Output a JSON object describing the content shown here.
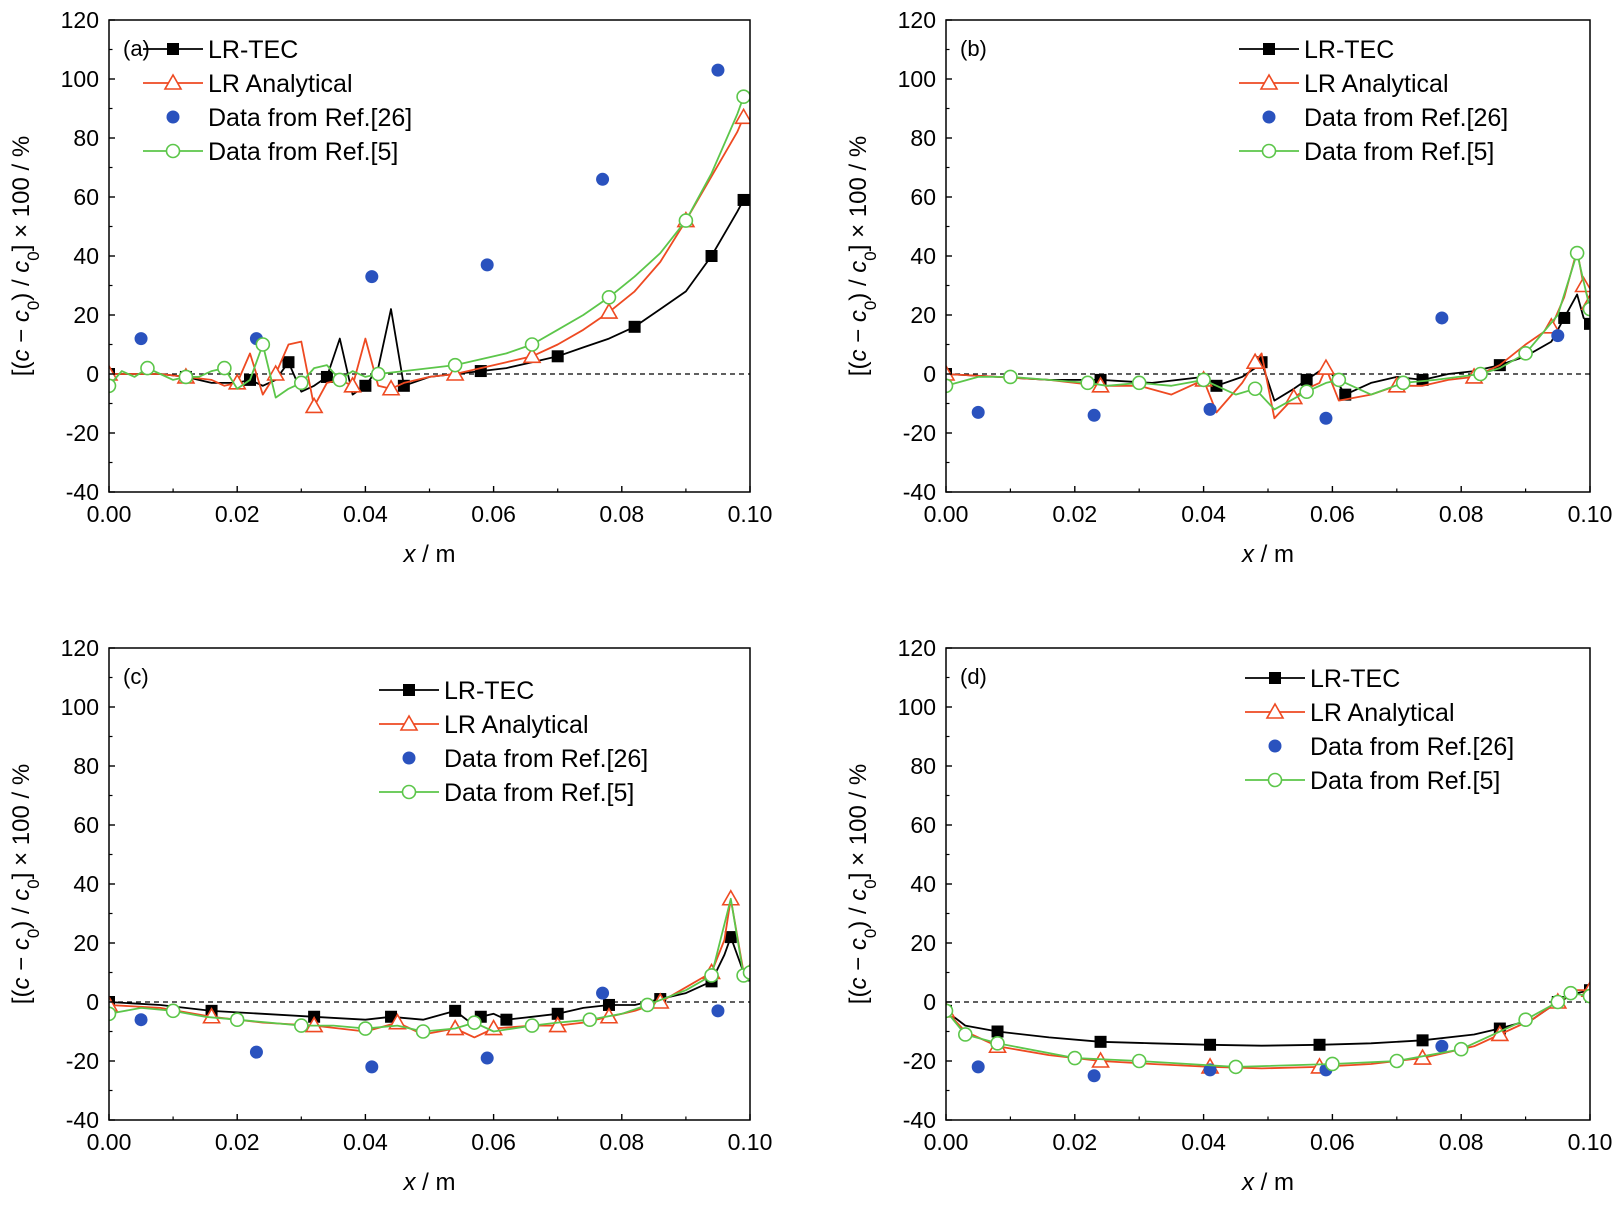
{
  "colors": {
    "lr_tec": "#000000",
    "lr_analytical": "#ee4a22",
    "ref26": "#2a52be",
    "ref5": "#5cc64a",
    "zero_line": "#000000"
  },
  "legend_entries": [
    {
      "key": "lr_tec",
      "label": "LR-TEC",
      "marker": "square-filled"
    },
    {
      "key": "lr_analytical",
      "label": "LR Analytical",
      "marker": "triangle-open"
    },
    {
      "key": "ref26",
      "label": "Data from Ref.[26]",
      "marker": "circle-filled"
    },
    {
      "key": "ref5",
      "label": "Data from Ref.[5]",
      "marker": "circle-open"
    }
  ],
  "axes": {
    "xlabel_var": "x",
    "xlabel_unit": " / m",
    "ylabel": "[(c − c0) / c0] × 100 / %",
    "ylabel_parts": [
      "[(",
      "c",
      " − ",
      "c",
      "0",
      ") / ",
      "c",
      "0",
      "] × 100 / %"
    ],
    "xlim": [
      0,
      0.1
    ],
    "ylim": [
      -40,
      120
    ],
    "xticks": [
      "0.00",
      "0.02",
      "0.04",
      "0.06",
      "0.08",
      "0.10"
    ],
    "yticks": [
      "-40",
      "-20",
      "0",
      "20",
      "40",
      "60",
      "80",
      "100",
      "120"
    ]
  },
  "chart_data": [
    {
      "type": "line",
      "panel": "(a)",
      "legend_position": "top-left",
      "xlim": [
        0,
        0.1
      ],
      "ylim": [
        -40,
        120
      ],
      "series": [
        {
          "name": "LR-TEC",
          "x": [
            0,
            0.004,
            0.008,
            0.012,
            0.016,
            0.02,
            0.022,
            0.024,
            0.026,
            0.028,
            0.03,
            0.032,
            0.034,
            0.036,
            0.038,
            0.04,
            0.042,
            0.044,
            0.046,
            0.05,
            0.054,
            0.058,
            0.062,
            0.066,
            0.07,
            0.074,
            0.078,
            0.082,
            0.086,
            0.09,
            0.094,
            0.098,
            0.099
          ],
          "y": [
            0,
            0,
            0,
            -1,
            -3,
            -3,
            -2,
            -4,
            -2,
            4,
            -6,
            -4,
            -1,
            12,
            -7,
            -4,
            2,
            22,
            -4,
            -1,
            0,
            1,
            2,
            4,
            6,
            9,
            12,
            16,
            22,
            28,
            40,
            55,
            59
          ]
        },
        {
          "name": "LR Analytical",
          "x": [
            0,
            0.004,
            0.008,
            0.012,
            0.016,
            0.018,
            0.02,
            0.022,
            0.024,
            0.026,
            0.028,
            0.03,
            0.032,
            0.034,
            0.036,
            0.038,
            0.04,
            0.042,
            0.044,
            0.046,
            0.05,
            0.054,
            0.058,
            0.062,
            0.066,
            0.07,
            0.074,
            0.078,
            0.082,
            0.086,
            0.09,
            0.094,
            0.098,
            0.099
          ],
          "y": [
            0,
            0,
            0,
            -1,
            -2,
            -4,
            -3,
            7,
            -7,
            0,
            10,
            11,
            -11,
            -3,
            -2,
            -4,
            12,
            -4,
            -5,
            -3,
            -1,
            0,
            2,
            4,
            6,
            10,
            15,
            21,
            28,
            38,
            52,
            67,
            82,
            87
          ]
        },
        {
          "name": "Data from Ref.[26]",
          "x": [
            0.005,
            0.023,
            0.041,
            0.059,
            0.077,
            0.095
          ],
          "y": [
            12,
            12,
            33,
            37,
            66,
            103
          ]
        },
        {
          "name": "Data from Ref.[5]",
          "x": [
            0,
            0.002,
            0.004,
            0.006,
            0.008,
            0.01,
            0.012,
            0.014,
            0.016,
            0.018,
            0.02,
            0.022,
            0.024,
            0.026,
            0.028,
            0.03,
            0.032,
            0.034,
            0.036,
            0.038,
            0.04,
            0.042,
            0.046,
            0.05,
            0.054,
            0.058,
            0.062,
            0.066,
            0.07,
            0.074,
            0.078,
            0.082,
            0.086,
            0.09,
            0.094,
            0.098,
            0.099
          ],
          "y": [
            -4,
            1,
            -1,
            2,
            0,
            -2,
            -1,
            -1,
            1,
            2,
            -5,
            -2,
            10,
            -8,
            -5,
            -3,
            2,
            3,
            -2,
            1,
            -1,
            0,
            1,
            2,
            3,
            5,
            7,
            10,
            15,
            20,
            26,
            33,
            41,
            52,
            68,
            88,
            94
          ]
        }
      ]
    },
    {
      "type": "line",
      "panel": "(b)",
      "legend_position": "top-right",
      "xlim": [
        0,
        0.1
      ],
      "ylim": [
        -40,
        120
      ],
      "series": [
        {
          "name": "LR-TEC",
          "x": [
            0,
            0.008,
            0.016,
            0.024,
            0.032,
            0.04,
            0.042,
            0.046,
            0.048,
            0.049,
            0.051,
            0.054,
            0.056,
            0.058,
            0.059,
            0.062,
            0.066,
            0.07,
            0.074,
            0.078,
            0.082,
            0.086,
            0.09,
            0.094,
            0.096,
            0.098,
            0.099,
            0.1
          ],
          "y": [
            0,
            -1,
            -2,
            -2,
            -3,
            -1,
            -4,
            -1,
            2,
            4,
            -9,
            -5,
            -2,
            1,
            3,
            -7,
            -3,
            -1,
            -2,
            0,
            1,
            3,
            6,
            11,
            19,
            27,
            19,
            17
          ]
        },
        {
          "name": "LR Analytical",
          "x": [
            0,
            0.008,
            0.016,
            0.024,
            0.03,
            0.035,
            0.04,
            0.042,
            0.046,
            0.048,
            0.049,
            0.051,
            0.054,
            0.056,
            0.058,
            0.059,
            0.061,
            0.066,
            0.07,
            0.074,
            0.078,
            0.082,
            0.086,
            0.09,
            0.094,
            0.096,
            0.098,
            0.099,
            0.1
          ],
          "y": [
            0,
            -1,
            -2,
            -4,
            -4,
            -7,
            -2,
            -13,
            -3,
            4,
            7,
            -15,
            -8,
            -5,
            -3,
            2,
            -9,
            -7,
            -4,
            -4,
            -2,
            -1,
            3,
            10,
            16,
            26,
            42,
            30,
            24
          ]
        },
        {
          "name": "Data from Ref.[26]",
          "x": [
            0.005,
            0.023,
            0.041,
            0.059,
            0.077,
            0.095
          ],
          "y": [
            -13,
            -14,
            -12,
            -15,
            19,
            13
          ]
        },
        {
          "name": "Data from Ref.[5]",
          "x": [
            0,
            0.005,
            0.01,
            0.016,
            0.022,
            0.025,
            0.03,
            0.035,
            0.04,
            0.045,
            0.048,
            0.051,
            0.056,
            0.059,
            0.061,
            0.066,
            0.071,
            0.076,
            0.083,
            0.086,
            0.09,
            0.095,
            0.098,
            0.1
          ],
          "y": [
            -4,
            -1,
            -1,
            -2,
            -3,
            -4,
            -3,
            -4,
            -2,
            -7,
            -5,
            -12,
            -6,
            -3,
            -2,
            -7,
            -3,
            -2,
            0,
            2,
            7,
            20,
            41,
            22
          ]
        }
      ]
    },
    {
      "type": "line",
      "panel": "(c)",
      "legend_position": "top-right",
      "xlim": [
        0,
        0.1
      ],
      "ylim": [
        -40,
        120
      ],
      "series": [
        {
          "name": "LR-TEC",
          "x": [
            0,
            0.008,
            0.016,
            0.024,
            0.032,
            0.04,
            0.044,
            0.049,
            0.054,
            0.057,
            0.058,
            0.06,
            0.062,
            0.066,
            0.07,
            0.074,
            0.078,
            0.082,
            0.086,
            0.09,
            0.094,
            0.096,
            0.097,
            0.099,
            0.1
          ],
          "y": [
            0,
            -1,
            -3,
            -4,
            -5,
            -6,
            -5,
            -6,
            -3,
            -8,
            -5,
            -4,
            -6,
            -5,
            -4,
            -2,
            -1,
            -1,
            1,
            3,
            7,
            16,
            22,
            10,
            9
          ]
        },
        {
          "name": "LR Analytical",
          "x": [
            0,
            0.008,
            0.016,
            0.024,
            0.032,
            0.04,
            0.045,
            0.049,
            0.054,
            0.057,
            0.06,
            0.066,
            0.07,
            0.074,
            0.078,
            0.082,
            0.086,
            0.09,
            0.094,
            0.096,
            0.097,
            0.099,
            0.1
          ],
          "y": [
            -1,
            -2,
            -5,
            -7,
            -8,
            -10,
            -7,
            -11,
            -9,
            -12,
            -9,
            -8,
            -8,
            -7,
            -5,
            -3,
            0,
            5,
            10,
            21,
            35,
            10,
            10
          ]
        },
        {
          "name": "Data from Ref.[26]",
          "x": [
            0.005,
            0.023,
            0.041,
            0.059,
            0.077,
            0.095
          ],
          "y": [
            -6,
            -17,
            -22,
            -19,
            3,
            -3
          ]
        },
        {
          "name": "Data from Ref.[5]",
          "x": [
            0,
            0.005,
            0.01,
            0.015,
            0.02,
            0.025,
            0.03,
            0.035,
            0.04,
            0.045,
            0.049,
            0.054,
            0.057,
            0.06,
            0.066,
            0.07,
            0.075,
            0.08,
            0.084,
            0.09,
            0.094,
            0.097,
            0.099,
            0.1
          ],
          "y": [
            -4,
            -2,
            -3,
            -5,
            -6,
            -7,
            -8,
            -8,
            -9,
            -8,
            -10,
            -9,
            -7,
            -10,
            -8,
            -7,
            -6,
            -4,
            -1,
            4,
            9,
            35,
            9,
            10
          ]
        }
      ]
    },
    {
      "type": "line",
      "panel": "(d)",
      "legend_position": "top-right",
      "xlim": [
        0,
        0.1
      ],
      "ylim": [
        -40,
        120
      ],
      "series": [
        {
          "name": "LR-TEC",
          "x": [
            0,
            0.003,
            0.008,
            0.016,
            0.024,
            0.032,
            0.041,
            0.049,
            0.058,
            0.066,
            0.074,
            0.082,
            0.086,
            0.091,
            0.095,
            0.098,
            0.1
          ],
          "y": [
            -3,
            -8,
            -10,
            -12,
            -13.5,
            -14,
            -14.5,
            -14.8,
            -14.5,
            -14,
            -13,
            -11,
            -9,
            -6,
            0,
            3,
            4
          ]
        },
        {
          "name": "LR Analytical",
          "x": [
            0,
            0.003,
            0.008,
            0.016,
            0.024,
            0.032,
            0.041,
            0.049,
            0.058,
            0.066,
            0.074,
            0.082,
            0.086,
            0.091,
            0.095,
            0.098,
            0.1
          ],
          "y": [
            -3,
            -10,
            -15,
            -18,
            -20,
            -21,
            -22,
            -22.5,
            -22,
            -21,
            -19,
            -15,
            -11,
            -6,
            0,
            4,
            4
          ]
        },
        {
          "name": "Data from Ref.[26]",
          "x": [
            0.005,
            0.023,
            0.041,
            0.059,
            0.077,
            0.095
          ],
          "y": [
            -22,
            -25,
            -23,
            -23,
            -15,
            0
          ]
        },
        {
          "name": "Data from Ref.[5]",
          "x": [
            0,
            0.003,
            0.008,
            0.02,
            0.03,
            0.045,
            0.06,
            0.07,
            0.08,
            0.09,
            0.095,
            0.097,
            0.1
          ],
          "y": [
            -3,
            -11,
            -14,
            -19,
            -20,
            -22,
            -21,
            -20,
            -16,
            -6,
            0,
            3,
            2
          ]
        }
      ]
    }
  ]
}
